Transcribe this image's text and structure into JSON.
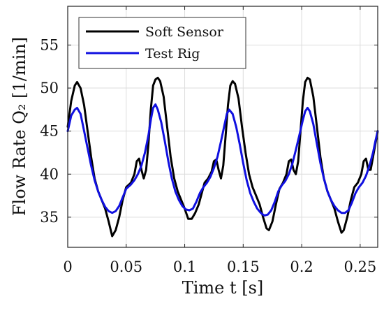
{
  "chart_data": {
    "type": "line",
    "xlabel": "Time t [s]",
    "ylabel": "Flow Rate Q₂ [1/min]",
    "xlim": [
      0,
      0.265
    ],
    "ylim": [
      31.5,
      59.5
    ],
    "xticks": [
      0,
      0.05,
      0.1,
      0.15,
      0.2,
      0.25
    ],
    "xtick_labels": [
      "0",
      "0.05",
      "0.1",
      "0.15",
      "0.2",
      "0.25"
    ],
    "yticks": [
      35,
      40,
      45,
      50,
      55
    ],
    "ytick_labels": [
      "35",
      "40",
      "45",
      "50",
      "55"
    ],
    "grid": true,
    "legend_position": "top-left",
    "series": [
      {
        "name": "Soft Sensor",
        "color": "#000000",
        "points": [
          [
            0.0,
            45.5
          ],
          [
            0.003,
            48.5
          ],
          [
            0.006,
            50.3
          ],
          [
            0.008,
            50.7
          ],
          [
            0.011,
            50.0
          ],
          [
            0.014,
            48.0
          ],
          [
            0.017,
            45.0
          ],
          [
            0.02,
            42.0
          ],
          [
            0.023,
            39.5
          ],
          [
            0.026,
            38.0
          ],
          [
            0.029,
            37.0
          ],
          [
            0.032,
            36.0
          ],
          [
            0.035,
            34.5
          ],
          [
            0.038,
            32.8
          ],
          [
            0.041,
            33.5
          ],
          [
            0.044,
            35.0
          ],
          [
            0.047,
            37.0
          ],
          [
            0.05,
            38.5
          ],
          [
            0.054,
            39.0
          ],
          [
            0.057,
            40.0
          ],
          [
            0.059,
            41.5
          ],
          [
            0.061,
            41.8
          ],
          [
            0.063,
            40.5
          ],
          [
            0.065,
            39.5
          ],
          [
            0.067,
            40.5
          ],
          [
            0.069,
            43.5
          ],
          [
            0.071,
            47.5
          ],
          [
            0.073,
            50.3
          ],
          [
            0.075,
            51.0
          ],
          [
            0.077,
            51.2
          ],
          [
            0.079,
            50.8
          ],
          [
            0.082,
            49.0
          ],
          [
            0.085,
            45.5
          ],
          [
            0.088,
            42.0
          ],
          [
            0.091,
            39.5
          ],
          [
            0.094,
            38.0
          ],
          [
            0.097,
            37.0
          ],
          [
            0.1,
            36.0
          ],
          [
            0.103,
            34.8
          ],
          [
            0.106,
            34.8
          ],
          [
            0.109,
            35.5
          ],
          [
            0.112,
            36.5
          ],
          [
            0.115,
            38.0
          ],
          [
            0.117,
            39.0
          ],
          [
            0.12,
            39.5
          ],
          [
            0.123,
            40.3
          ],
          [
            0.125,
            41.5
          ],
          [
            0.127,
            41.7
          ],
          [
            0.129,
            40.5
          ],
          [
            0.131,
            39.5
          ],
          [
            0.133,
            41.0
          ],
          [
            0.135,
            44.5
          ],
          [
            0.137,
            48.0
          ],
          [
            0.139,
            50.3
          ],
          [
            0.141,
            50.8
          ],
          [
            0.143,
            50.5
          ],
          [
            0.146,
            48.8
          ],
          [
            0.149,
            45.5
          ],
          [
            0.152,
            42.5
          ],
          [
            0.155,
            40.0
          ],
          [
            0.158,
            38.5
          ],
          [
            0.161,
            37.5
          ],
          [
            0.164,
            36.5
          ],
          [
            0.167,
            35.0
          ],
          [
            0.17,
            33.7
          ],
          [
            0.172,
            33.5
          ],
          [
            0.175,
            34.5
          ],
          [
            0.178,
            36.5
          ],
          [
            0.181,
            38.3
          ],
          [
            0.184,
            39.0
          ],
          [
            0.187,
            40.0
          ],
          [
            0.189,
            41.5
          ],
          [
            0.191,
            41.7
          ],
          [
            0.193,
            40.5
          ],
          [
            0.195,
            40.0
          ],
          [
            0.197,
            41.5
          ],
          [
            0.199,
            45.0
          ],
          [
            0.201,
            48.5
          ],
          [
            0.203,
            50.7
          ],
          [
            0.205,
            51.2
          ],
          [
            0.207,
            51.0
          ],
          [
            0.21,
            49.0
          ],
          [
            0.213,
            45.5
          ],
          [
            0.216,
            42.0
          ],
          [
            0.219,
            39.5
          ],
          [
            0.222,
            38.0
          ],
          [
            0.225,
            37.0
          ],
          [
            0.228,
            36.0
          ],
          [
            0.231,
            34.5
          ],
          [
            0.234,
            33.2
          ],
          [
            0.236,
            33.5
          ],
          [
            0.239,
            35.0
          ],
          [
            0.242,
            37.0
          ],
          [
            0.245,
            38.5
          ],
          [
            0.248,
            39.0
          ],
          [
            0.251,
            40.0
          ],
          [
            0.253,
            41.5
          ],
          [
            0.255,
            41.8
          ],
          [
            0.257,
            40.5
          ],
          [
            0.259,
            40.5
          ],
          [
            0.261,
            42.0
          ],
          [
            0.263,
            43.5
          ],
          [
            0.265,
            45.0
          ]
        ]
      },
      {
        "name": "Test Rig",
        "color": "#1010e0",
        "points": [
          [
            0.0,
            45.0
          ],
          [
            0.003,
            46.8
          ],
          [
            0.006,
            47.5
          ],
          [
            0.008,
            47.7
          ],
          [
            0.011,
            47.0
          ],
          [
            0.014,
            45.0
          ],
          [
            0.017,
            43.0
          ],
          [
            0.02,
            41.0
          ],
          [
            0.023,
            39.3
          ],
          [
            0.026,
            38.0
          ],
          [
            0.029,
            37.0
          ],
          [
            0.032,
            36.2
          ],
          [
            0.035,
            35.7
          ],
          [
            0.038,
            35.5
          ],
          [
            0.041,
            35.7
          ],
          [
            0.044,
            36.3
          ],
          [
            0.047,
            37.3
          ],
          [
            0.05,
            38.3
          ],
          [
            0.054,
            38.8
          ],
          [
            0.057,
            39.3
          ],
          [
            0.06,
            40.0
          ],
          [
            0.063,
            41.0
          ],
          [
            0.066,
            42.5
          ],
          [
            0.069,
            44.5
          ],
          [
            0.071,
            46.3
          ],
          [
            0.073,
            47.7
          ],
          [
            0.075,
            48.1
          ],
          [
            0.077,
            47.5
          ],
          [
            0.08,
            46.0
          ],
          [
            0.083,
            43.8
          ],
          [
            0.086,
            41.5
          ],
          [
            0.089,
            39.5
          ],
          [
            0.092,
            38.0
          ],
          [
            0.095,
            37.0
          ],
          [
            0.098,
            36.3
          ],
          [
            0.101,
            35.9
          ],
          [
            0.104,
            35.8
          ],
          [
            0.107,
            36.0
          ],
          [
            0.11,
            36.8
          ],
          [
            0.113,
            37.8
          ],
          [
            0.116,
            38.5
          ],
          [
            0.119,
            39.0
          ],
          [
            0.122,
            39.7
          ],
          [
            0.125,
            40.7
          ],
          [
            0.128,
            42.0
          ],
          [
            0.131,
            43.8
          ],
          [
            0.134,
            45.7
          ],
          [
            0.136,
            47.0
          ],
          [
            0.138,
            47.5
          ],
          [
            0.141,
            47.0
          ],
          [
            0.144,
            45.5
          ],
          [
            0.147,
            43.5
          ],
          [
            0.15,
            41.3
          ],
          [
            0.153,
            39.3
          ],
          [
            0.156,
            37.8
          ],
          [
            0.159,
            36.8
          ],
          [
            0.162,
            36.0
          ],
          [
            0.165,
            35.5
          ],
          [
            0.168,
            35.2
          ],
          [
            0.171,
            35.3
          ],
          [
            0.174,
            35.8
          ],
          [
            0.177,
            36.8
          ],
          [
            0.18,
            38.0
          ],
          [
            0.183,
            38.7
          ],
          [
            0.186,
            39.2
          ],
          [
            0.189,
            40.0
          ],
          [
            0.192,
            41.2
          ],
          [
            0.195,
            42.8
          ],
          [
            0.198,
            44.5
          ],
          [
            0.201,
            46.3
          ],
          [
            0.203,
            47.3
          ],
          [
            0.205,
            47.7
          ],
          [
            0.207,
            47.3
          ],
          [
            0.21,
            45.8
          ],
          [
            0.213,
            43.5
          ],
          [
            0.216,
            41.3
          ],
          [
            0.219,
            39.5
          ],
          [
            0.222,
            38.0
          ],
          [
            0.225,
            37.0
          ],
          [
            0.228,
            36.3
          ],
          [
            0.231,
            35.8
          ],
          [
            0.234,
            35.5
          ],
          [
            0.237,
            35.5
          ],
          [
            0.24,
            35.8
          ],
          [
            0.243,
            36.7
          ],
          [
            0.246,
            37.8
          ],
          [
            0.249,
            38.5
          ],
          [
            0.252,
            39.0
          ],
          [
            0.255,
            39.8
          ],
          [
            0.258,
            41.0
          ],
          [
            0.261,
            42.5
          ],
          [
            0.263,
            43.8
          ],
          [
            0.265,
            45.0
          ]
        ]
      }
    ]
  }
}
